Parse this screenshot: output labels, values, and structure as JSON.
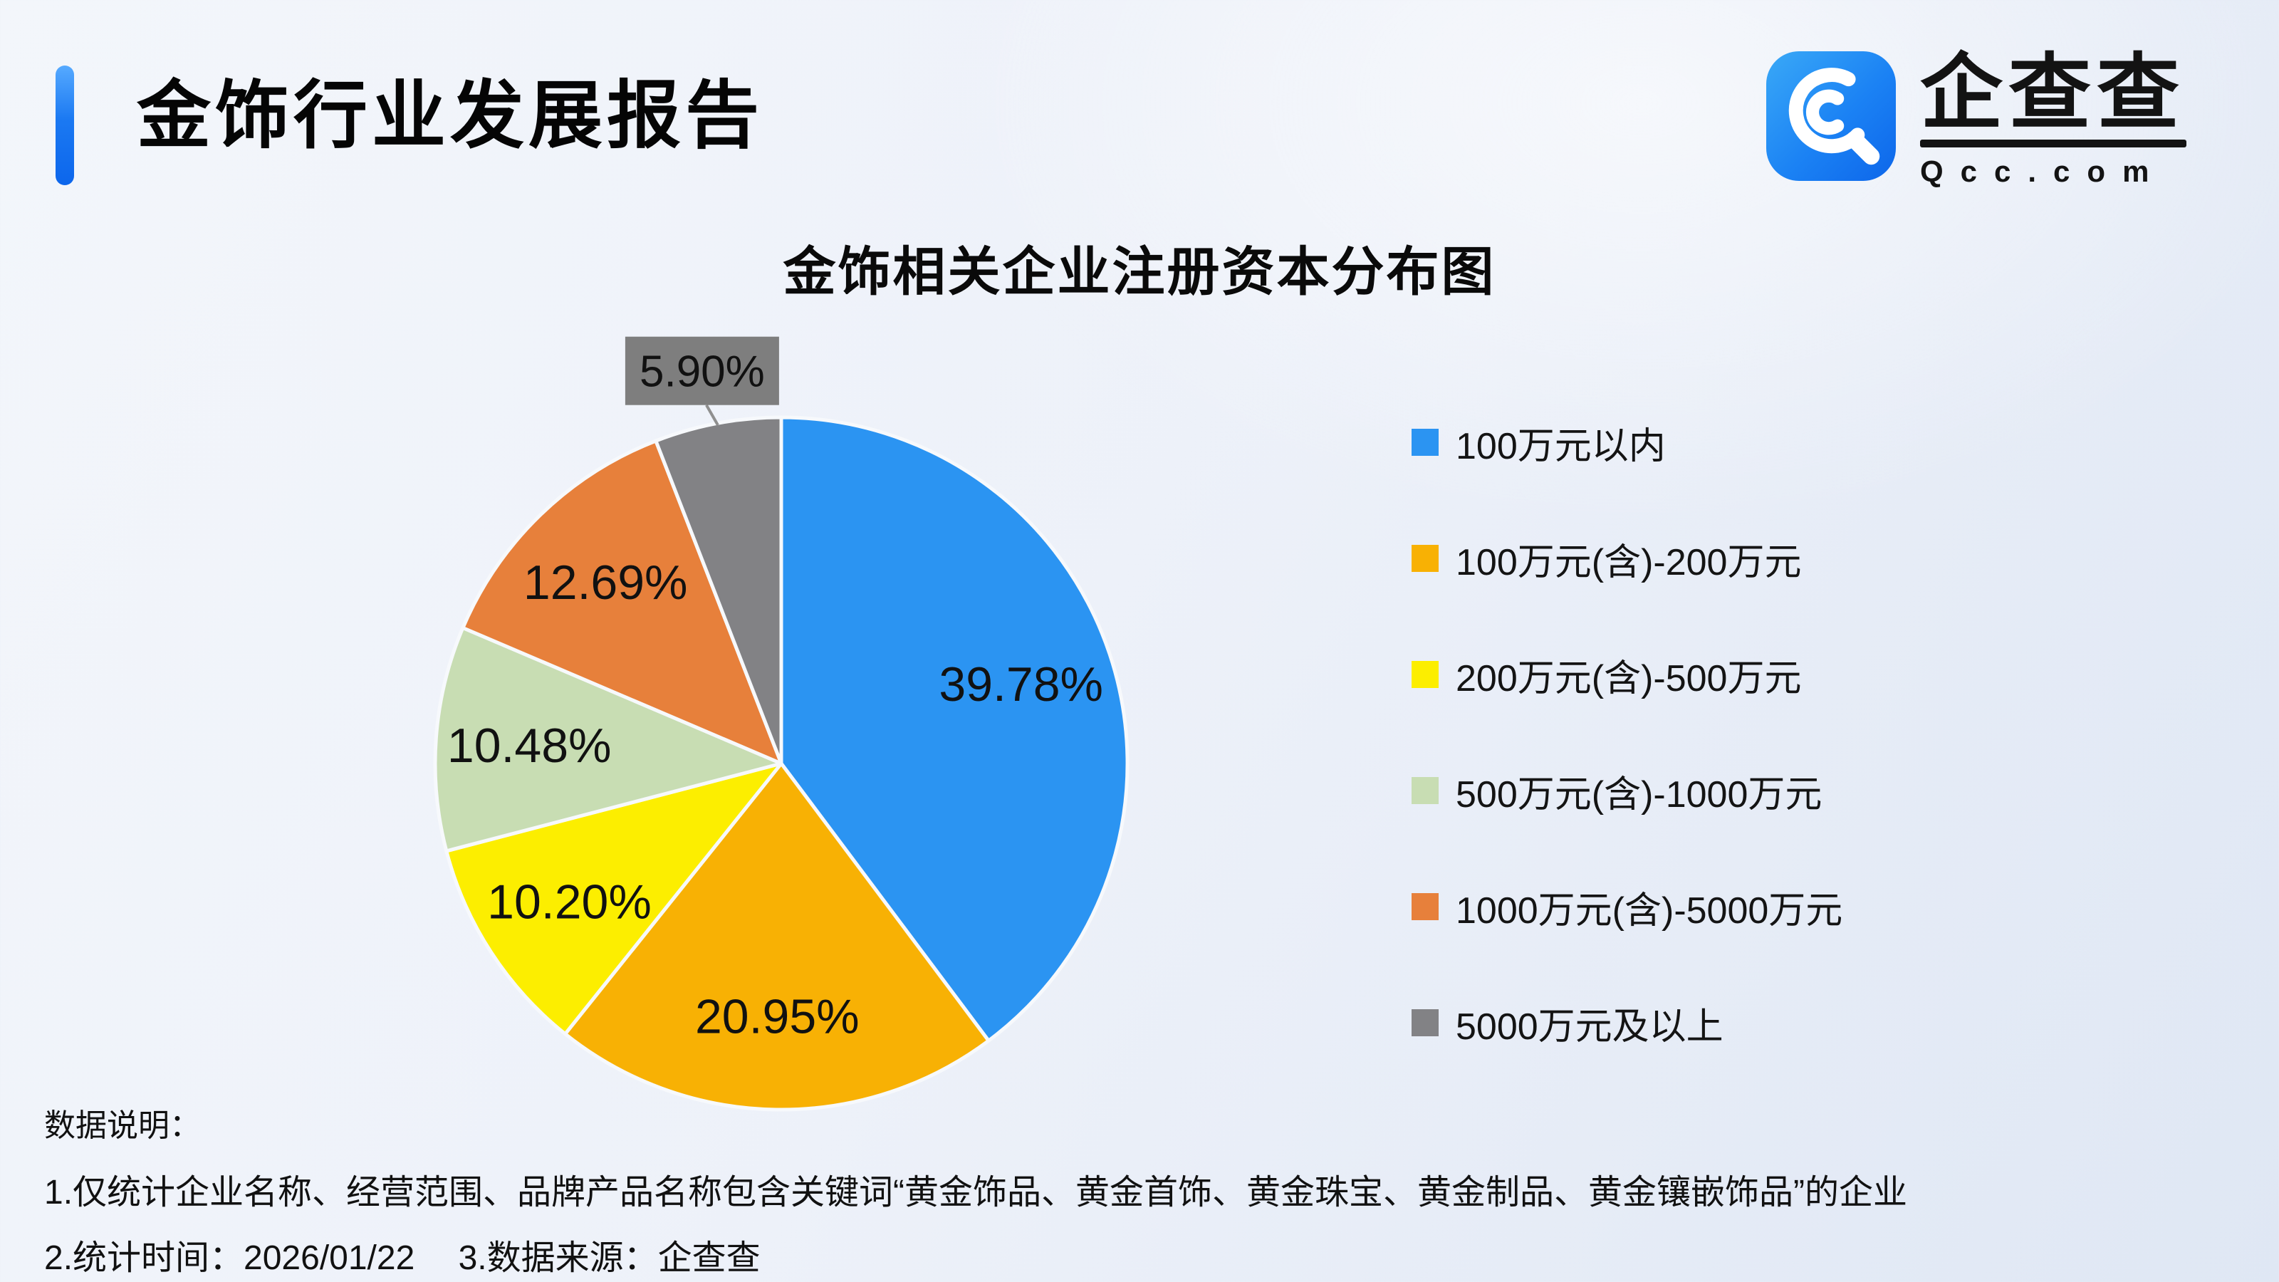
{
  "header": {
    "title": "金饰行业发展报告"
  },
  "logo": {
    "brand": "企查查",
    "domain": "Qcc.com"
  },
  "chart_data": {
    "type": "pie",
    "title": "金饰相关企业注册资本分布图",
    "categories": [
      "100万元以内",
      "100万元(含)-200万元",
      "200万元(含)-500万元",
      "500万元(含)-1000万元",
      "1000万元(含)-5000万元",
      "5000万元及以上"
    ],
    "values": [
      39.78,
      20.95,
      10.2,
      10.48,
      12.69,
      5.9
    ],
    "value_labels": [
      "39.78%",
      "20.95%",
      "10.20%",
      "10.48%",
      "12.69%",
      "5.90%"
    ],
    "colors": [
      "#2b94f2",
      "#f8b104",
      "#fcee00",
      "#c8ddb3",
      "#e7803b",
      "#828285"
    ],
    "unit": "percent",
    "start_angle": "top",
    "direction": "clockwise",
    "legend_position": "right",
    "callout": {
      "index": 5,
      "background": "#7e7e7e",
      "text_color": "#111111"
    }
  },
  "footer": {
    "heading": "数据说明：",
    "notes": [
      "1.仅统计企业名称、经营范围、品牌产品名称包含关键词“黄金饰品、黄金首饰、黄金珠宝、黄金制品、黄金镶嵌饰品”的企业",
      "2.统计时间：2026/01/22　 3.数据来源：企查查"
    ]
  }
}
